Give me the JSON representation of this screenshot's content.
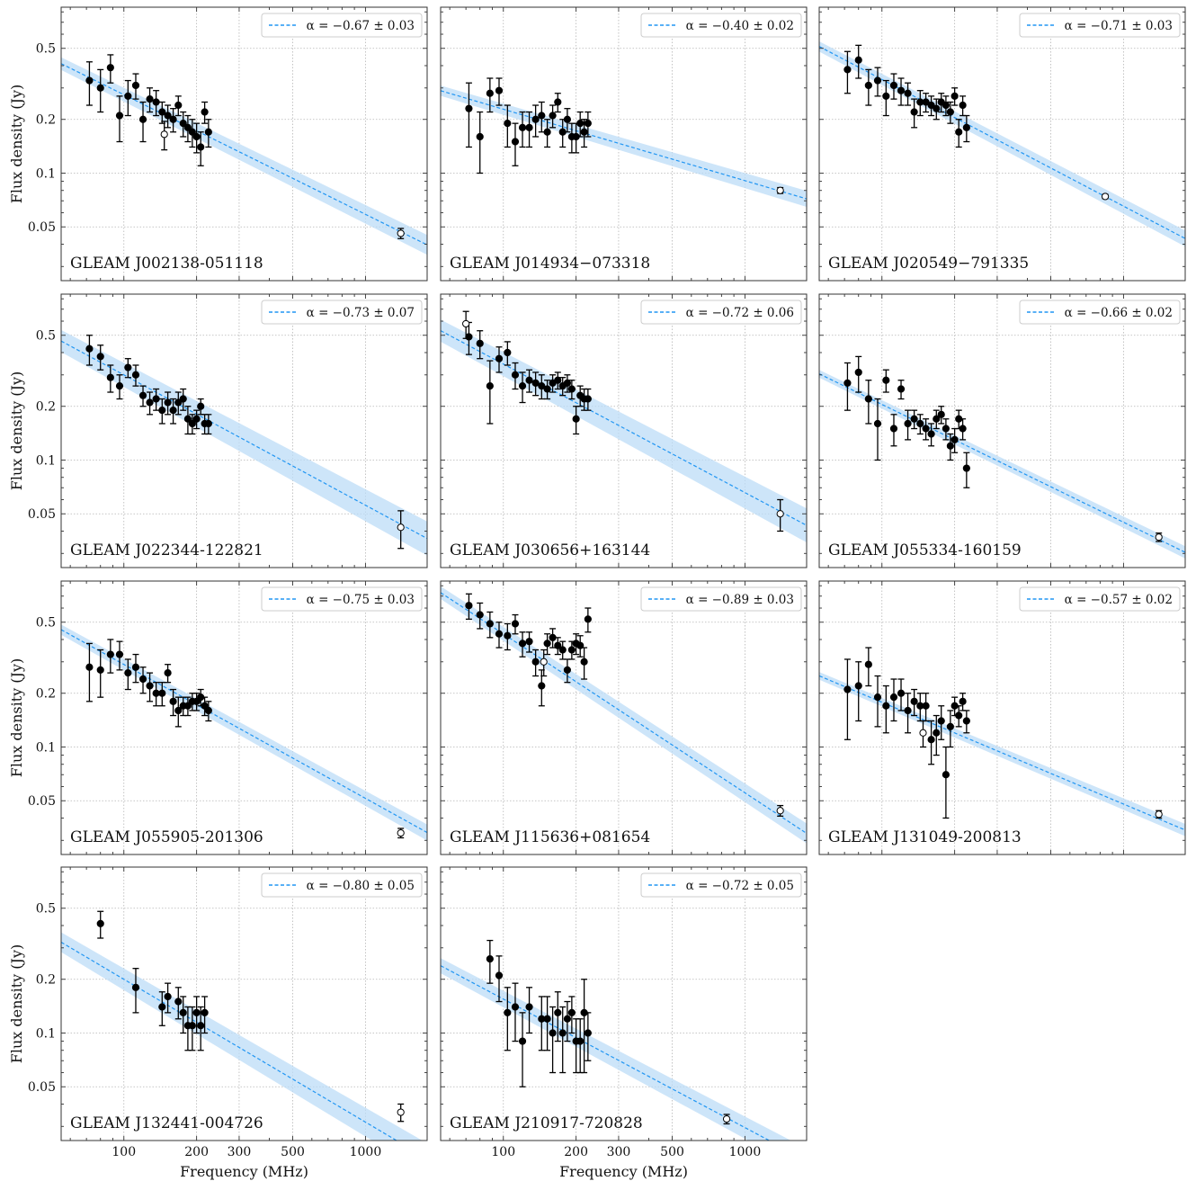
{
  "figure": {
    "xlabel": "Frequency (MHz)",
    "ylabel": "Flux density (Jy)",
    "x_ticks": [
      100,
      200,
      300,
      500,
      1000
    ],
    "y_ticks": [
      0.05,
      0.1,
      0.2,
      0.5
    ],
    "xlim": [
      55,
      1800
    ],
    "ylim": [
      0.025,
      0.85
    ],
    "scale": "log-log",
    "grid": true,
    "legend_position": "top-right",
    "fit_color": "#2196f3",
    "band_color": "#bcdcf7",
    "point_color": "#000000"
  },
  "chart_data": [
    {
      "type": "scatter",
      "source": "GLEAM J002138-051118",
      "alpha_label": "α = −0.67 ± 0.03",
      "alpha": -0.67,
      "fit": {
        "s100": 0.275,
        "band_frac": 0.05
      },
      "points": [
        [
          72,
          0.33,
          0.09
        ],
        [
          80,
          0.3,
          0.08
        ],
        [
          88,
          0.39,
          0.07
        ],
        [
          96,
          0.21,
          0.06
        ],
        [
          104,
          0.27,
          0.06
        ],
        [
          112,
          0.31,
          0.05
        ],
        [
          120,
          0.2,
          0.05
        ],
        [
          128,
          0.26,
          0.04
        ],
        [
          136,
          0.25,
          0.04
        ],
        [
          144,
          0.22,
          0.03
        ],
        [
          152,
          0.21,
          0.03
        ],
        [
          160,
          0.2,
          0.03
        ],
        [
          168,
          0.24,
          0.03
        ],
        [
          176,
          0.19,
          0.03
        ],
        [
          184,
          0.18,
          0.03
        ],
        [
          192,
          0.17,
          0.03
        ],
        [
          200,
          0.16,
          0.03
        ],
        [
          208,
          0.14,
          0.03
        ],
        [
          216,
          0.22,
          0.03
        ],
        [
          224,
          0.17,
          0.03
        ]
      ],
      "open_points": [
        [
          147,
          0.165,
          0.03
        ],
        [
          1400,
          0.046,
          0.003
        ]
      ]
    },
    {
      "type": "scatter",
      "source": "GLEAM J014934−073318",
      "alpha_label": "α = −0.40 ± 0.02",
      "alpha": -0.4,
      "fit": {
        "s100": 0.228,
        "band_frac": 0.04
      },
      "points": [
        [
          72,
          0.23,
          0.09
        ],
        [
          80,
          0.16,
          0.06
        ],
        [
          88,
          0.28,
          0.06
        ],
        [
          96,
          0.29,
          0.05
        ],
        [
          104,
          0.19,
          0.05
        ],
        [
          112,
          0.15,
          0.04
        ],
        [
          120,
          0.18,
          0.04
        ],
        [
          128,
          0.18,
          0.04
        ],
        [
          136,
          0.2,
          0.04
        ],
        [
          144,
          0.21,
          0.04
        ],
        [
          152,
          0.17,
          0.03
        ],
        [
          160,
          0.21,
          0.03
        ],
        [
          168,
          0.25,
          0.03
        ],
        [
          176,
          0.17,
          0.03
        ],
        [
          184,
          0.2,
          0.03
        ],
        [
          192,
          0.16,
          0.03
        ],
        [
          200,
          0.16,
          0.03
        ],
        [
          208,
          0.19,
          0.03
        ],
        [
          216,
          0.17,
          0.03
        ],
        [
          224,
          0.19,
          0.03
        ]
      ],
      "open_points": [
        [
          1400,
          0.08,
          0.003
        ]
      ]
    },
    {
      "type": "scatter",
      "source": "GLEAM J020549−791335",
      "alpha_label": "α = −0.71 ± 0.03",
      "alpha": -0.71,
      "fit": {
        "s100": 0.335,
        "band_frac": 0.04
      },
      "points": [
        [
          72,
          0.38,
          0.1
        ],
        [
          80,
          0.43,
          0.09
        ],
        [
          88,
          0.31,
          0.07
        ],
        [
          96,
          0.33,
          0.06
        ],
        [
          104,
          0.27,
          0.06
        ],
        [
          112,
          0.31,
          0.05
        ],
        [
          120,
          0.29,
          0.05
        ],
        [
          128,
          0.28,
          0.04
        ],
        [
          136,
          0.22,
          0.04
        ],
        [
          144,
          0.25,
          0.04
        ],
        [
          152,
          0.25,
          0.03
        ],
        [
          160,
          0.24,
          0.03
        ],
        [
          168,
          0.23,
          0.03
        ],
        [
          176,
          0.25,
          0.03
        ],
        [
          184,
          0.24,
          0.03
        ],
        [
          192,
          0.22,
          0.03
        ],
        [
          200,
          0.27,
          0.03
        ],
        [
          208,
          0.17,
          0.03
        ],
        [
          216,
          0.24,
          0.03
        ],
        [
          224,
          0.18,
          0.03
        ]
      ],
      "open_points": [
        [
          840,
          0.074,
          0.002
        ]
      ]
    },
    {
      "type": "scatter",
      "source": "GLEAM J022344-122821",
      "alpha_label": "α = −0.73 ± 0.07",
      "alpha": -0.73,
      "fit": {
        "s100": 0.3,
        "band_frac": 0.09
      },
      "points": [
        [
          72,
          0.42,
          0.08
        ],
        [
          80,
          0.38,
          0.06
        ],
        [
          88,
          0.29,
          0.05
        ],
        [
          96,
          0.26,
          0.04
        ],
        [
          104,
          0.33,
          0.04
        ],
        [
          112,
          0.3,
          0.04
        ],
        [
          120,
          0.23,
          0.03
        ],
        [
          128,
          0.21,
          0.03
        ],
        [
          136,
          0.22,
          0.03
        ],
        [
          144,
          0.19,
          0.03
        ],
        [
          152,
          0.21,
          0.03
        ],
        [
          160,
          0.19,
          0.03
        ],
        [
          168,
          0.21,
          0.03
        ],
        [
          176,
          0.22,
          0.03
        ],
        [
          184,
          0.17,
          0.03
        ],
        [
          192,
          0.16,
          0.02
        ],
        [
          200,
          0.17,
          0.02
        ],
        [
          208,
          0.2,
          0.02
        ],
        [
          216,
          0.16,
          0.02
        ],
        [
          224,
          0.16,
          0.02
        ]
      ],
      "open_points": [
        [
          1400,
          0.042,
          0.01
        ]
      ]
    },
    {
      "type": "scatter",
      "source": "GLEAM J030656+163144",
      "alpha_label": "α = −0.72 ± 0.06",
      "alpha": -0.72,
      "fit": {
        "s100": 0.345,
        "band_frac": 0.09
      },
      "points": [
        [
          72,
          0.49,
          0.1
        ],
        [
          80,
          0.45,
          0.08
        ],
        [
          88,
          0.26,
          0.1
        ],
        [
          96,
          0.37,
          0.06
        ],
        [
          104,
          0.4,
          0.06
        ],
        [
          112,
          0.3,
          0.05
        ],
        [
          120,
          0.26,
          0.05
        ],
        [
          128,
          0.28,
          0.04
        ],
        [
          136,
          0.27,
          0.04
        ],
        [
          144,
          0.26,
          0.04
        ],
        [
          152,
          0.25,
          0.03
        ],
        [
          160,
          0.27,
          0.03
        ],
        [
          168,
          0.28,
          0.03
        ],
        [
          176,
          0.26,
          0.03
        ],
        [
          184,
          0.27,
          0.03
        ],
        [
          192,
          0.25,
          0.03
        ],
        [
          200,
          0.17,
          0.03
        ],
        [
          208,
          0.23,
          0.03
        ],
        [
          216,
          0.22,
          0.03
        ],
        [
          224,
          0.22,
          0.03
        ]
      ],
      "open_points": [
        [
          70,
          0.58,
          0.1
        ],
        [
          1400,
          0.05,
          0.01
        ]
      ]
    },
    {
      "type": "scatter",
      "source": "GLEAM J055334-160159",
      "alpha_label": "α = −0.66 ± 0.02",
      "alpha": -0.66,
      "fit": {
        "s100": 0.205,
        "band_frac": 0.03
      },
      "points": [
        [
          72,
          0.27,
          0.08
        ],
        [
          80,
          0.31,
          0.07
        ],
        [
          88,
          0.22,
          0.06
        ],
        [
          96,
          0.16,
          0.06
        ],
        [
          104,
          0.28,
          0.04
        ],
        [
          112,
          0.15,
          0.03
        ],
        [
          120,
          0.25,
          0.03
        ],
        [
          128,
          0.16,
          0.03
        ],
        [
          136,
          0.17,
          0.02
        ],
        [
          144,
          0.16,
          0.02
        ],
        [
          152,
          0.15,
          0.02
        ],
        [
          160,
          0.14,
          0.02
        ],
        [
          168,
          0.17,
          0.02
        ],
        [
          176,
          0.18,
          0.02
        ],
        [
          184,
          0.15,
          0.02
        ],
        [
          192,
          0.12,
          0.02
        ],
        [
          200,
          0.13,
          0.02
        ],
        [
          208,
          0.17,
          0.02
        ],
        [
          216,
          0.15,
          0.02
        ],
        [
          224,
          0.09,
          0.02
        ]
      ],
      "open_points": [
        [
          1400,
          0.037,
          0.002
        ]
      ]
    },
    {
      "type": "scatter",
      "source": "GLEAM J055905-201306",
      "alpha_label": "α = −0.75 ± 0.03",
      "alpha": -0.75,
      "fit": {
        "s100": 0.29,
        "band_frac": 0.04
      },
      "points": [
        [
          72,
          0.28,
          0.1
        ],
        [
          80,
          0.27,
          0.08
        ],
        [
          88,
          0.33,
          0.07
        ],
        [
          96,
          0.33,
          0.06
        ],
        [
          104,
          0.26,
          0.05
        ],
        [
          112,
          0.28,
          0.05
        ],
        [
          120,
          0.24,
          0.04
        ],
        [
          128,
          0.22,
          0.04
        ],
        [
          136,
          0.2,
          0.03
        ],
        [
          144,
          0.2,
          0.03
        ],
        [
          152,
          0.26,
          0.03
        ],
        [
          160,
          0.18,
          0.03
        ],
        [
          168,
          0.16,
          0.03
        ],
        [
          176,
          0.17,
          0.02
        ],
        [
          184,
          0.17,
          0.02
        ],
        [
          192,
          0.18,
          0.02
        ],
        [
          200,
          0.18,
          0.02
        ],
        [
          208,
          0.19,
          0.02
        ],
        [
          216,
          0.17,
          0.02
        ],
        [
          224,
          0.16,
          0.02
        ]
      ],
      "open_points": [
        [
          1400,
          0.033,
          0.002
        ]
      ]
    },
    {
      "type": "scatter",
      "source": "GLEAM J115636+081654",
      "alpha_label": "α = −0.89 ± 0.03",
      "alpha": -0.89,
      "fit": {
        "s100": 0.43,
        "band_frac": 0.05
      },
      "points": [
        [
          72,
          0.62,
          0.1
        ],
        [
          80,
          0.55,
          0.09
        ],
        [
          88,
          0.49,
          0.08
        ],
        [
          96,
          0.43,
          0.07
        ],
        [
          104,
          0.42,
          0.07
        ],
        [
          112,
          0.49,
          0.06
        ],
        [
          120,
          0.38,
          0.06
        ],
        [
          128,
          0.39,
          0.05
        ],
        [
          136,
          0.3,
          0.05
        ],
        [
          144,
          0.22,
          0.05
        ],
        [
          152,
          0.38,
          0.05
        ],
        [
          160,
          0.41,
          0.05
        ],
        [
          168,
          0.37,
          0.04
        ],
        [
          176,
          0.35,
          0.04
        ],
        [
          184,
          0.27,
          0.04
        ],
        [
          192,
          0.35,
          0.04
        ],
        [
          200,
          0.38,
          0.05
        ],
        [
          208,
          0.37,
          0.05
        ],
        [
          216,
          0.3,
          0.06
        ],
        [
          224,
          0.52,
          0.08
        ]
      ],
      "open_points": [
        [
          147,
          0.3,
          0.05
        ],
        [
          1400,
          0.044,
          0.003
        ]
      ]
    },
    {
      "type": "scatter",
      "source": "GLEAM J131049-200813",
      "alpha_label": "α = −0.57 ± 0.02",
      "alpha": -0.57,
      "fit": {
        "s100": 0.178,
        "band_frac": 0.03
      },
      "points": [
        [
          72,
          0.21,
          0.1
        ],
        [
          80,
          0.22,
          0.08
        ],
        [
          88,
          0.29,
          0.07
        ],
        [
          96,
          0.19,
          0.06
        ],
        [
          104,
          0.17,
          0.05
        ],
        [
          112,
          0.19,
          0.05
        ],
        [
          120,
          0.2,
          0.04
        ],
        [
          128,
          0.16,
          0.04
        ],
        [
          136,
          0.18,
          0.03
        ],
        [
          144,
          0.17,
          0.03
        ],
        [
          152,
          0.17,
          0.03
        ],
        [
          160,
          0.11,
          0.03
        ],
        [
          168,
          0.12,
          0.03
        ],
        [
          176,
          0.14,
          0.03
        ],
        [
          184,
          0.07,
          0.03
        ],
        [
          192,
          0.13,
          0.03
        ],
        [
          200,
          0.17,
          0.02
        ],
        [
          208,
          0.15,
          0.02
        ],
        [
          216,
          0.18,
          0.02
        ],
        [
          224,
          0.14,
          0.02
        ]
      ],
      "open_points": [
        [
          148,
          0.12,
          0.02
        ],
        [
          1400,
          0.042,
          0.002
        ]
      ]
    },
    {
      "type": "scatter",
      "source": "GLEAM J132441-004726",
      "alpha_label": "α = −0.80 ± 0.05",
      "alpha": -0.8,
      "fit": {
        "s100": 0.2,
        "band_frac": 0.08
      },
      "points": [
        [
          80,
          0.41,
          0.07
        ],
        [
          112,
          0.18,
          0.05
        ],
        [
          144,
          0.14,
          0.03
        ],
        [
          152,
          0.16,
          0.03
        ],
        [
          168,
          0.15,
          0.03
        ],
        [
          176,
          0.13,
          0.03
        ],
        [
          184,
          0.11,
          0.03
        ],
        [
          192,
          0.11,
          0.03
        ],
        [
          200,
          0.13,
          0.03
        ],
        [
          208,
          0.11,
          0.03
        ],
        [
          216,
          0.13,
          0.03
        ]
      ],
      "open_points": [
        [
          1400,
          0.036,
          0.004
        ]
      ]
    },
    {
      "type": "scatter",
      "source": "GLEAM J210917-720828",
      "alpha_label": "α = −0.72 ± 0.05",
      "alpha": -0.72,
      "fit": {
        "s100": 0.155,
        "band_frac": 0.06
      },
      "points": [
        [
          88,
          0.26,
          0.07
        ],
        [
          96,
          0.21,
          0.06
        ],
        [
          104,
          0.13,
          0.05
        ],
        [
          112,
          0.14,
          0.05
        ],
        [
          120,
          0.09,
          0.04
        ],
        [
          128,
          0.14,
          0.04
        ],
        [
          144,
          0.12,
          0.04
        ],
        [
          152,
          0.12,
          0.04
        ],
        [
          160,
          0.1,
          0.04
        ],
        [
          168,
          0.13,
          0.04
        ],
        [
          176,
          0.1,
          0.04
        ],
        [
          184,
          0.12,
          0.03
        ],
        [
          192,
          0.13,
          0.03
        ],
        [
          200,
          0.09,
          0.03
        ],
        [
          208,
          0.09,
          0.03
        ],
        [
          216,
          0.13,
          0.07
        ],
        [
          224,
          0.1,
          0.03
        ]
      ],
      "open_points": [
        [
          840,
          0.033,
          0.002
        ]
      ]
    }
  ]
}
